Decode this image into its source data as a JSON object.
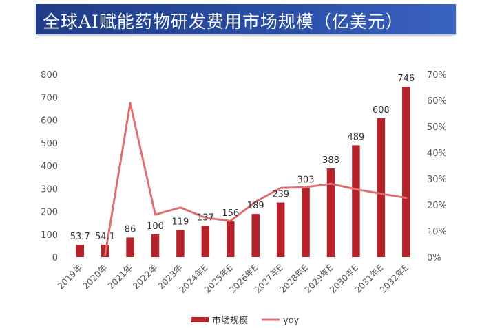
{
  "title": "全球AI赋能药物研发费用市场规模（亿美元）",
  "colors": {
    "bar": "#b5232a",
    "line": "#e07070",
    "title_bg": "#2a4fa8"
  },
  "chart_data": {
    "type": "bar",
    "title": "全球AI赋能药物研发费用市场规模（亿美元）",
    "categories": [
      "2019年",
      "2020年",
      "2021年",
      "2022年",
      "2023年",
      "2024年E",
      "2025年E",
      "2026年E",
      "2027年E",
      "2028年E",
      "2029年E",
      "2030年E",
      "2031年E",
      "2032年E"
    ],
    "series": [
      {
        "name": "市场规模",
        "type": "bar",
        "axis": "left",
        "values": [
          53.7,
          54.1,
          86,
          100,
          119,
          137,
          156,
          189,
          239,
          303,
          388,
          489,
          608,
          746
        ],
        "labels": [
          "53.7",
          "54.1",
          "86",
          "100",
          "119",
          "137",
          "156",
          "189",
          "239",
          "303",
          "388",
          "489",
          "608",
          "746"
        ]
      },
      {
        "name": "yoy",
        "type": "line",
        "axis": "right",
        "values": [
          null,
          0.7,
          59.0,
          16.3,
          19.0,
          15.1,
          13.9,
          21.2,
          26.5,
          26.8,
          28.1,
          26.0,
          24.3,
          22.7
        ]
      }
    ],
    "ylim_left": [
      0,
      800
    ],
    "yticks_left": [
      "0",
      "100",
      "200",
      "300",
      "400",
      "500",
      "600",
      "700",
      "800"
    ],
    "ylim_right": [
      0,
      70
    ],
    "yticks_right": [
      "0%",
      "10%",
      "20%",
      "30%",
      "40%",
      "50%",
      "60%",
      "70%"
    ],
    "legend": {
      "position": "bottom",
      "items": [
        "市场规模",
        "yoy"
      ]
    },
    "grid": false
  }
}
